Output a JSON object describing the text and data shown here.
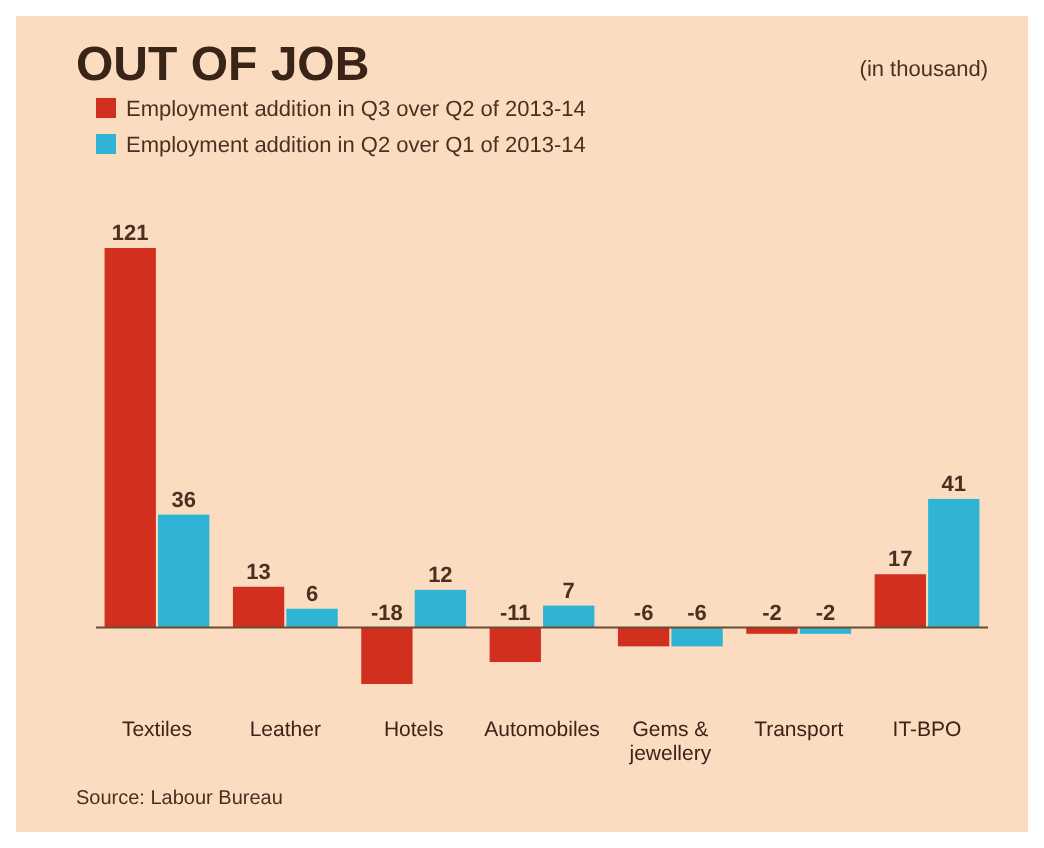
{
  "chart_data": {
    "type": "bar",
    "title": "OUT OF JOB",
    "subtitle": "(in thousand)",
    "categories": [
      "Textiles",
      "Leather",
      "Hotels",
      "Automobiles",
      "Gems & jewellery",
      "Transport",
      "IT-BPO"
    ],
    "series": [
      {
        "name": "Employment addition in Q3 over Q2 of 2013-14",
        "color": "#d2301f",
        "values": [
          121,
          13,
          -18,
          -11,
          -6,
          -2,
          17
        ]
      },
      {
        "name": "Employment addition in Q2 over Q1 of 2013-14",
        "color": "#2fb4d4",
        "values": [
          36,
          6,
          12,
          7,
          -6,
          -2,
          41
        ]
      }
    ],
    "ref_lines": [
      {
        "axis": "y",
        "value": 0
      }
    ],
    "data_labels": true,
    "legend": "top left",
    "annotations": [
      "Source: Labour Bureau"
    ]
  }
}
